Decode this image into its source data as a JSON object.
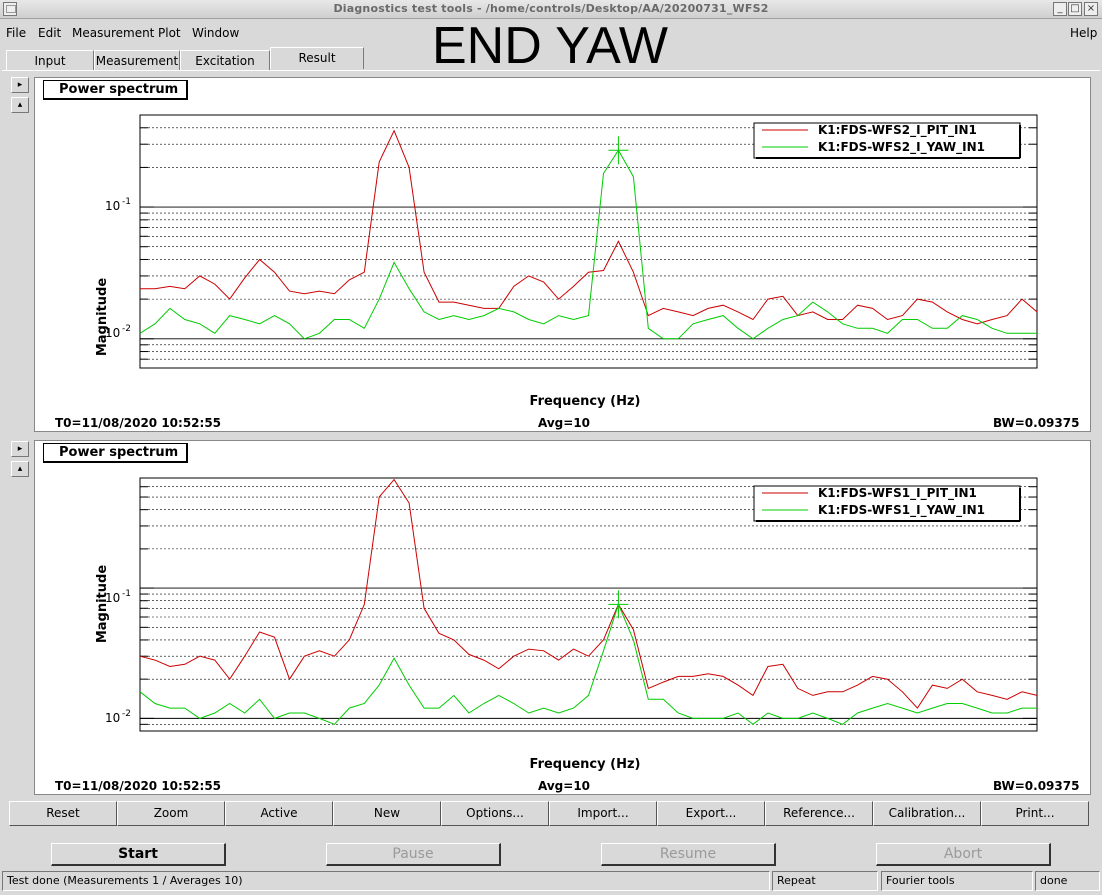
{
  "window": {
    "title": "Diagnostics test tools - /home/controls/Desktop/AA/20200731_WFS2",
    "controls": [
      "_",
      "□",
      "×"
    ]
  },
  "menu": {
    "file": "File",
    "edit": "Edit",
    "measurement": "Measurement",
    "plot": "Plot",
    "window": "Window",
    "help": "Help"
  },
  "overlay_title": "END YAW",
  "tabs": [
    "Input",
    "Measurement",
    "Excitation",
    "Result"
  ],
  "side_buttons": {
    "expand": "▸",
    "collapse": "▴"
  },
  "colors": {
    "pit": "#cc0000",
    "yaw": "#00cc00"
  },
  "panels": [
    {
      "label": "Power spectrum",
      "ylabel": "Magnitude",
      "xlabel": "Frequency (Hz)",
      "ticks": [
        "10",
        "-1",
        "10",
        "-2"
      ],
      "t0": "T0=11/08/2020 10:52:55",
      "avg": "Avg=10",
      "bw": "BW=0.09375",
      "legend": [
        "K1:FDS-WFS2_I_PIT_IN1",
        "K1:FDS-WFS2_I_YAW_IN1"
      ]
    },
    {
      "label": "Power spectrum",
      "ylabel": "Magnitude",
      "xlabel": "Frequency (Hz)",
      "ticks": [
        "10",
        "-1",
        "10",
        "-2"
      ],
      "t0": "T0=11/08/2020 10:52:55",
      "avg": "Avg=10",
      "bw": "BW=0.09375",
      "legend": [
        "K1:FDS-WFS1_I_PIT_IN1",
        "K1:FDS-WFS1_I_YAW_IN1"
      ]
    }
  ],
  "chart_data": [
    {
      "type": "line",
      "xlabel": "Frequency (Hz)",
      "ylabel": "Magnitude",
      "yscale": "log",
      "ylim": [
        0.006,
        0.5
      ],
      "x": [
        0,
        1,
        2,
        3,
        4,
        5,
        6,
        7,
        8,
        9,
        10,
        11,
        12,
        13,
        14,
        15,
        16,
        17,
        18,
        19,
        20,
        21,
        22,
        23,
        24,
        25,
        26,
        27,
        28,
        29,
        30,
        31,
        32,
        33,
        34,
        35,
        36,
        37,
        38,
        39,
        40,
        41,
        42,
        43,
        44,
        45,
        46,
        47,
        48,
        49,
        50,
        51,
        52,
        53,
        54,
        55,
        56,
        57,
        58,
        59,
        60
      ],
      "series": [
        {
          "name": "K1:FDS-WFS2_I_PIT_IN1",
          "values": [
            0.024,
            0.024,
            0.025,
            0.024,
            0.03,
            0.026,
            0.02,
            0.029,
            0.04,
            0.032,
            0.023,
            0.022,
            0.023,
            0.022,
            0.028,
            0.032,
            0.22,
            0.38,
            0.2,
            0.032,
            0.019,
            0.019,
            0.018,
            0.017,
            0.017,
            0.025,
            0.03,
            0.027,
            0.02,
            0.025,
            0.032,
            0.033,
            0.055,
            0.032,
            0.015,
            0.017,
            0.016,
            0.015,
            0.017,
            0.018,
            0.016,
            0.014,
            0.02,
            0.021,
            0.015,
            0.016,
            0.014,
            0.014,
            0.018,
            0.017,
            0.014,
            0.015,
            0.02,
            0.019,
            0.016,
            0.014,
            0.013,
            0.014,
            0.015,
            0.02,
            0.016
          ]
        },
        {
          "name": "K1:FDS-WFS2_I_YAW_IN1",
          "values": [
            0.011,
            0.013,
            0.017,
            0.014,
            0.013,
            0.011,
            0.015,
            0.014,
            0.013,
            0.015,
            0.013,
            0.01,
            0.011,
            0.014,
            0.014,
            0.012,
            0.02,
            0.038,
            0.024,
            0.016,
            0.014,
            0.015,
            0.014,
            0.015,
            0.017,
            0.016,
            0.014,
            0.013,
            0.015,
            0.014,
            0.015,
            0.18,
            0.27,
            0.17,
            0.012,
            0.01,
            0.01,
            0.013,
            0.014,
            0.015,
            0.012,
            0.01,
            0.012,
            0.014,
            0.015,
            0.019,
            0.016,
            0.013,
            0.012,
            0.012,
            0.011,
            0.014,
            0.014,
            0.012,
            0.012,
            0.015,
            0.014,
            0.012,
            0.011,
            0.011,
            0.011
          ]
        }
      ]
    },
    {
      "type": "line",
      "xlabel": "Frequency (Hz)",
      "ylabel": "Magnitude",
      "yscale": "log",
      "ylim": [
        0.008,
        0.7
      ],
      "x": [
        0,
        1,
        2,
        3,
        4,
        5,
        6,
        7,
        8,
        9,
        10,
        11,
        12,
        13,
        14,
        15,
        16,
        17,
        18,
        19,
        20,
        21,
        22,
        23,
        24,
        25,
        26,
        27,
        28,
        29,
        30,
        31,
        32,
        33,
        34,
        35,
        36,
        37,
        38,
        39,
        40,
        41,
        42,
        43,
        44,
        45,
        46,
        47,
        48,
        49,
        50,
        51,
        52,
        53,
        54,
        55,
        56,
        57,
        58,
        59,
        60
      ],
      "series": [
        {
          "name": "K1:FDS-WFS1_I_PIT_IN1",
          "values": [
            0.03,
            0.028,
            0.025,
            0.026,
            0.03,
            0.028,
            0.02,
            0.03,
            0.046,
            0.042,
            0.02,
            0.03,
            0.033,
            0.03,
            0.04,
            0.075,
            0.5,
            0.68,
            0.45,
            0.07,
            0.045,
            0.04,
            0.031,
            0.028,
            0.024,
            0.03,
            0.034,
            0.033,
            0.028,
            0.034,
            0.03,
            0.04,
            0.075,
            0.048,
            0.017,
            0.019,
            0.021,
            0.021,
            0.022,
            0.021,
            0.018,
            0.015,
            0.025,
            0.026,
            0.017,
            0.015,
            0.016,
            0.016,
            0.018,
            0.021,
            0.02,
            0.016,
            0.012,
            0.018,
            0.017,
            0.02,
            0.016,
            0.015,
            0.014,
            0.016,
            0.015
          ]
        },
        {
          "name": "K1:FDS-WFS1_I_YAW_IN1",
          "values": [
            0.016,
            0.013,
            0.012,
            0.012,
            0.01,
            0.011,
            0.013,
            0.011,
            0.014,
            0.01,
            0.011,
            0.011,
            0.01,
            0.009,
            0.012,
            0.013,
            0.018,
            0.029,
            0.018,
            0.012,
            0.012,
            0.015,
            0.011,
            0.013,
            0.015,
            0.013,
            0.011,
            0.012,
            0.011,
            0.012,
            0.015,
            0.033,
            0.075,
            0.04,
            0.014,
            0.014,
            0.011,
            0.01,
            0.01,
            0.01,
            0.011,
            0.009,
            0.011,
            0.01,
            0.01,
            0.011,
            0.01,
            0.009,
            0.011,
            0.012,
            0.013,
            0.012,
            0.011,
            0.012,
            0.013,
            0.013,
            0.012,
            0.011,
            0.011,
            0.012,
            0.012
          ]
        }
      ]
    }
  ],
  "buttons": [
    "Reset",
    "Zoom",
    "Active",
    "New",
    "Options...",
    "Import...",
    "Export...",
    "Reference...",
    "Calibration...",
    "Print..."
  ],
  "controls": {
    "start": "Start",
    "pause": "Pause",
    "resume": "Resume",
    "abort": "Abort"
  },
  "status": {
    "message": "Test done (Measurements 1 / Averages 10)",
    "mode": "Repeat",
    "tool": "Fourier tools",
    "state": "done"
  }
}
